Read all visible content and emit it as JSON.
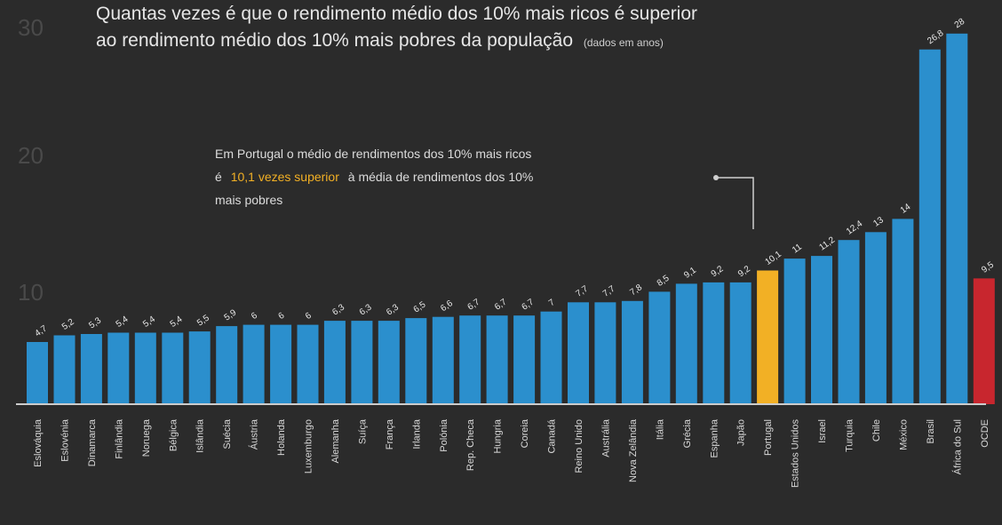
{
  "chart_data": {
    "type": "bar",
    "title": "Quantas vezes é que o rendimento médio dos 10% mais ricos é superior",
    "title_line2": "ao rendimento médio dos 10% mais pobres da população",
    "title_note": "(dados em anos)",
    "yticks": [
      "10",
      "20",
      "30"
    ],
    "ylim": [
      0,
      30
    ],
    "annotation": {
      "line1": "Em Portugal o médio de rendimentos dos 10% mais ricos",
      "line2_pre": "é",
      "line2_highlight": "10,1 vezes superior",
      "line2_post": "à média de rendimentos dos 10%",
      "line3": "mais pobres"
    },
    "categories": [
      "Eslováquia",
      "Eslovénia",
      "Dinamarca",
      "Finlândia",
      "Noruega",
      "Bélgica",
      "Islândia",
      "Suécia",
      "Áustria",
      "Holanda",
      "Luxemburgo",
      "Alemanha",
      "Suíça",
      "França",
      "Irlanda",
      "Polónia",
      "Rep. Checa",
      "Hungria",
      "Coreia",
      "Canadá",
      "Reino Unido",
      "Austrália",
      "Nova Zelândia",
      "Itália",
      "Grécia",
      "Espanha",
      "Japão",
      "Portugal",
      "Estados Unidos",
      "Israel",
      "Turquia",
      "Chile",
      "México",
      "Brasil",
      "África do Sul",
      "OCDE"
    ],
    "values": [
      4.7,
      5.2,
      5.3,
      5.4,
      5.4,
      5.4,
      5.5,
      5.9,
      6.0,
      6.0,
      6.0,
      6.3,
      6.3,
      6.3,
      6.5,
      6.6,
      6.7,
      6.7,
      6.7,
      7.0,
      7.7,
      7.7,
      7.8,
      8.5,
      9.1,
      9.2,
      9.2,
      10.1,
      11.0,
      11.2,
      12.4,
      13.0,
      14.0,
      26.8,
      28.0,
      9.5
    ],
    "colors": {
      "bar": "#2b8fcd",
      "highlight": "#f2b025",
      "average": "#c8262e",
      "axis": "#cccccc",
      "background": "#2b2b2b"
    },
    "highlight_index": 27,
    "average_index": 35
  }
}
